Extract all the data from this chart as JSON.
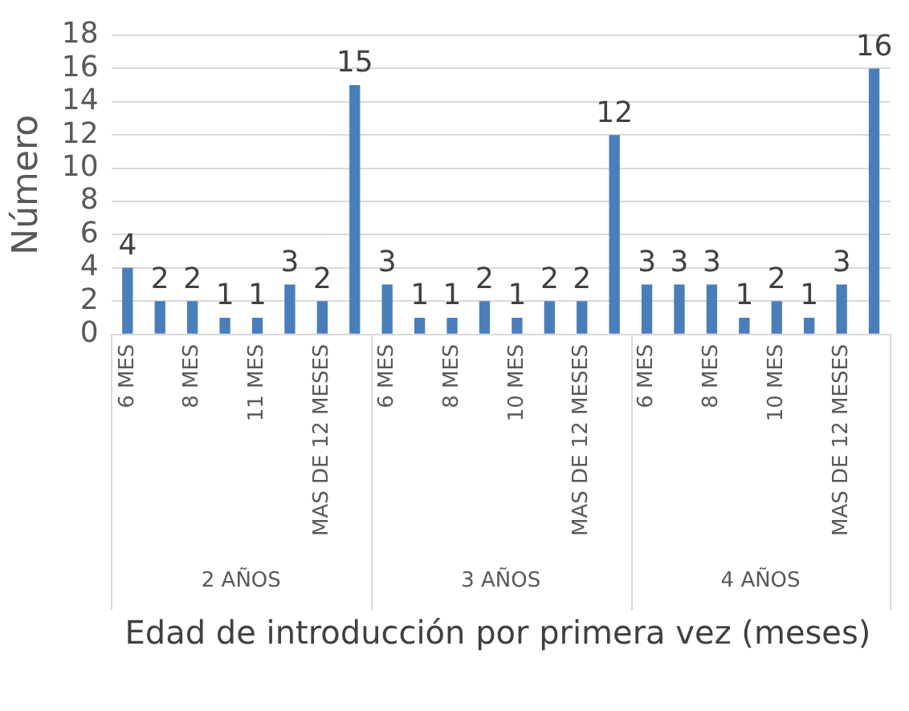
{
  "chart_data": {
    "type": "bar",
    "ylabel": "Número",
    "xlabel": "Edad de introducción por primera vez (meses)",
    "categories": [
      "6 MES",
      null,
      "8 MES",
      null,
      "11 MES",
      null,
      "MAS DE 12 MESES",
      null,
      "6 MES",
      null,
      "8 MES",
      null,
      "10 MES",
      null,
      "MAS DE 12 MESES",
      null,
      "6 MES",
      null,
      "8 MES",
      null,
      "10 MES",
      null,
      "MAS DE 12 MESES",
      null
    ],
    "annotations": [
      "2 AÑOS",
      "3 AÑOS",
      "4 AÑOS"
    ],
    "values": [
      4,
      2,
      2,
      1,
      1,
      3,
      2,
      15,
      3,
      1,
      1,
      2,
      1,
      2,
      2,
      12,
      3,
      3,
      3,
      1,
      2,
      1,
      3,
      16
    ],
    "color": "#4a7ebb",
    "ylim": [
      0,
      18
    ],
    "yticks": [
      0,
      2,
      4,
      6,
      8,
      10,
      12,
      14,
      16,
      18
    ],
    "grid": "y",
    "data_labels": true,
    "legend": false
  }
}
